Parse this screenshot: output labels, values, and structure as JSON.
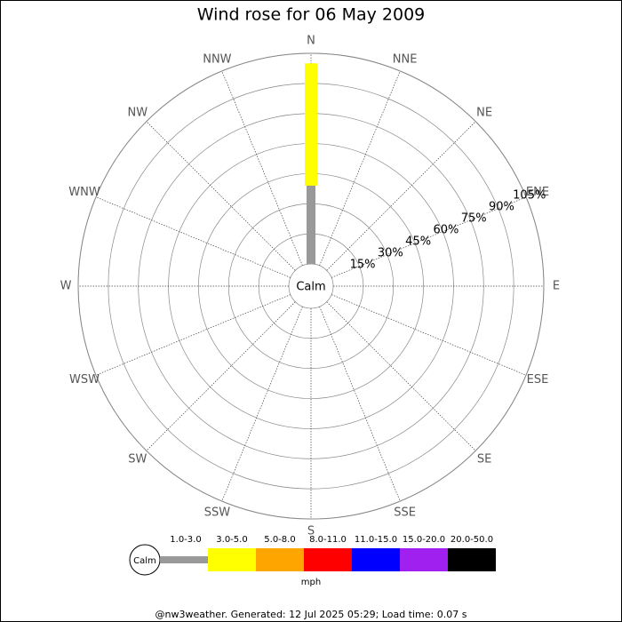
{
  "chart_data": {
    "type": "windrose",
    "title": "Wind rose for 06 May 2009",
    "directions": [
      "N",
      "NNE",
      "NE",
      "ENE",
      "E",
      "ESE",
      "SE",
      "SSE",
      "S",
      "SSW",
      "SW",
      "WSW",
      "W",
      "WNW",
      "NW",
      "NNW"
    ],
    "center_label": "Calm",
    "rlim": [
      0,
      105
    ],
    "rticks": [
      {
        "value": 15,
        "label": "15%"
      },
      {
        "value": 30,
        "label": "30%"
      },
      {
        "value": 45,
        "label": "45%"
      },
      {
        "value": 60,
        "label": "60%"
      },
      {
        "value": 75,
        "label": "75%"
      },
      {
        "value": 90,
        "label": "90%"
      },
      {
        "value": 105,
        "label": "105%"
      }
    ],
    "series": [
      {
        "name": "1.0-3.0",
        "color": "#999999",
        "values": [
          39,
          0,
          0,
          0,
          0,
          0,
          0,
          0,
          0,
          0,
          0,
          0,
          0,
          0,
          0,
          0
        ]
      },
      {
        "name": "3.0-5.0",
        "color": "#ffff00",
        "values": [
          61,
          0,
          0,
          0,
          0,
          0,
          0,
          0,
          0,
          0,
          0,
          0,
          0,
          0,
          0,
          0
        ]
      },
      {
        "name": "5.0-8.0",
        "color": "#ffa500",
        "values": [
          0,
          0,
          0,
          0,
          0,
          0,
          0,
          0,
          0,
          0,
          0,
          0,
          0,
          0,
          0,
          0
        ]
      },
      {
        "name": "8.0-11.0",
        "color": "#ff0000",
        "values": [
          0,
          0,
          0,
          0,
          0,
          0,
          0,
          0,
          0,
          0,
          0,
          0,
          0,
          0,
          0,
          0
        ]
      },
      {
        "name": "11.0-15.0",
        "color": "#0000ff",
        "values": [
          0,
          0,
          0,
          0,
          0,
          0,
          0,
          0,
          0,
          0,
          0,
          0,
          0,
          0,
          0,
          0
        ]
      },
      {
        "name": "15.0-20.0",
        "color": "#a020f0",
        "values": [
          0,
          0,
          0,
          0,
          0,
          0,
          0,
          0,
          0,
          0,
          0,
          0,
          0,
          0,
          0,
          0
        ]
      },
      {
        "name": "20.0-50.0",
        "color": "#000000",
        "values": [
          0,
          0,
          0,
          0,
          0,
          0,
          0,
          0,
          0,
          0,
          0,
          0,
          0,
          0,
          0,
          0
        ]
      }
    ],
    "legend_unit": "mph",
    "footer": "@nw3weather. Generated: 12 Jul 2025 05:29; Load time: 0.07 s"
  }
}
